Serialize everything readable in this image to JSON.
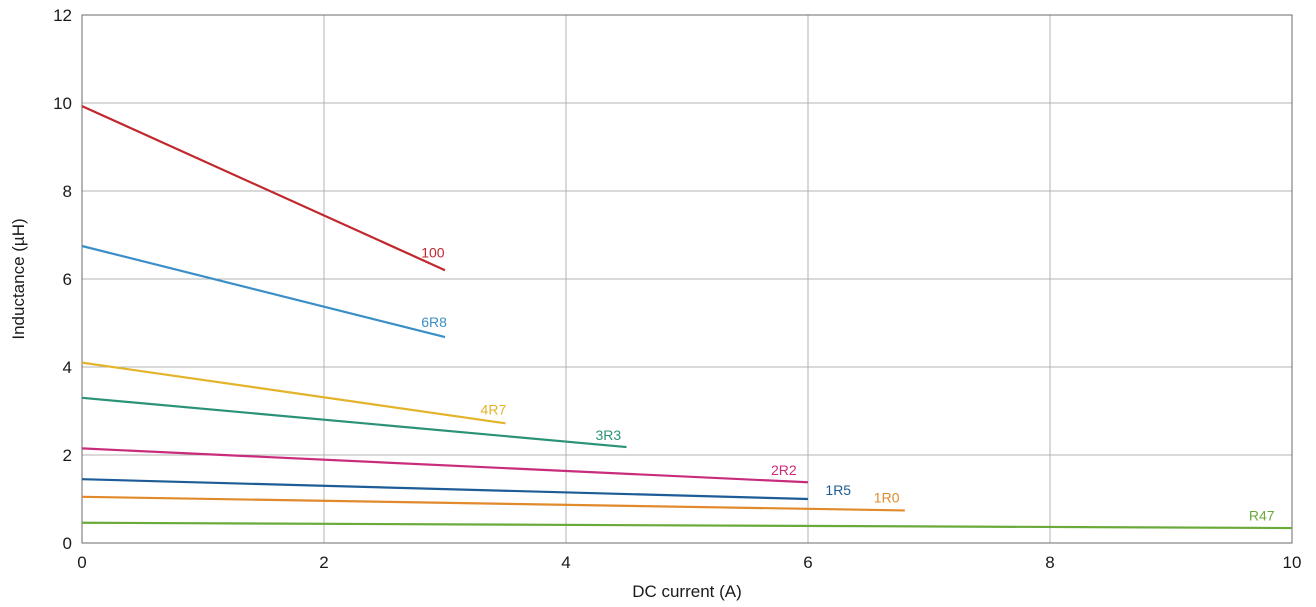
{
  "chart_data": {
    "type": "line",
    "xlabel": "DC current (A)",
    "ylabel": "Inductance (µH)",
    "xlim": [
      0,
      10
    ],
    "ylim": [
      0,
      12
    ],
    "x_ticks": [
      0,
      2,
      4,
      6,
      8,
      10
    ],
    "y_ticks": [
      0,
      2,
      4,
      6,
      8,
      10,
      12
    ],
    "grid": true,
    "series": [
      {
        "name": "100",
        "color": "#c1272d",
        "x": [
          0,
          3
        ],
        "y": [
          9.93,
          6.2
        ],
        "label_at": [
          2.9,
          6.6
        ]
      },
      {
        "name": "6R8",
        "color": "#3a8fc7",
        "x": [
          0,
          3
        ],
        "y": [
          6.75,
          4.68
        ],
        "label_at": [
          2.91,
          5.02
        ]
      },
      {
        "name": "4R7",
        "color": "#e3b32a",
        "x": [
          0,
          3.5
        ],
        "y": [
          4.1,
          2.72
        ],
        "label_at": [
          3.4,
          3.03
        ]
      },
      {
        "name": "3R3",
        "color": "#2a9277",
        "x": [
          0,
          4.5
        ],
        "y": [
          3.3,
          2.18
        ],
        "label_at": [
          4.35,
          2.45
        ]
      },
      {
        "name": "2R2",
        "color": "#c92c7c",
        "x": [
          0,
          6
        ],
        "y": [
          2.15,
          1.38
        ],
        "label_at": [
          5.8,
          1.66
        ]
      },
      {
        "name": "1R5",
        "color": "#1d5c96",
        "x": [
          0,
          6
        ],
        "y": [
          1.45,
          1.0
        ],
        "label_at": [
          6.25,
          1.2
        ]
      },
      {
        "name": "1R0",
        "color": "#e08a2c",
        "x": [
          0,
          6.8
        ],
        "y": [
          1.05,
          0.74
        ],
        "label_at": [
          6.65,
          1.03
        ]
      },
      {
        "name": "R47",
        "color": "#6aaa3a",
        "x": [
          0,
          10
        ],
        "y": [
          0.46,
          0.34
        ],
        "label_at": [
          9.75,
          0.62
        ]
      }
    ]
  }
}
